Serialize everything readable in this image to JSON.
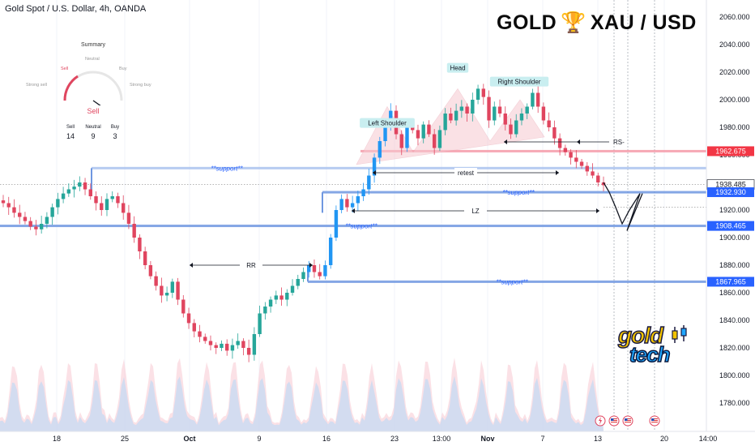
{
  "header": {
    "symbol_line": "Gold Spot / U.S. Dollar, 4h, OANDA",
    "big_title_left": "GOLD",
    "big_title_right": "XAU / USD"
  },
  "summary_widget": {
    "title": "Summary",
    "labels": {
      "strong_sell": "Strong sell",
      "sell": "Sell",
      "neutral": "Neutral",
      "buy": "Buy",
      "strong_buy": "Strong buy"
    },
    "result": "Sell",
    "counts": [
      {
        "label": "Sell",
        "value": "14"
      },
      {
        "label": "Neutral",
        "value": "9"
      },
      {
        "label": "Buy",
        "value": "3"
      }
    ],
    "needle_level": 0.28
  },
  "logo": {
    "word1": "gold",
    "word2": "tech"
  },
  "colors": {
    "up": "#26a69a",
    "up_bright": "#2196f3",
    "down": "#e0455f",
    "support_line": "#6f97e0",
    "resistance_band": "#f49aa8",
    "pattern_fill": "#f7c9d1",
    "price_label_blue": "#2962ff",
    "price_label_red": "#f23645"
  },
  "chart_data": {
    "type": "candlestick",
    "timeframe": "4h",
    "x_tick_labels": [
      "18",
      "25",
      "Oct",
      "9",
      "16",
      "23",
      "13:00",
      "Nov",
      "7",
      "13",
      "20",
      "14:00"
    ],
    "y_axis": {
      "min": 1760,
      "max": 2070,
      "tick_labels": [
        "2060.000",
        "2040.000",
        "2020.000",
        "2000.000",
        "1980.000",
        "1960.000",
        "1940.000",
        "1920.000",
        "1900.000",
        "1880.000",
        "1860.000",
        "1840.000",
        "1820.000",
        "1800.000",
        "1780.000"
      ]
    },
    "price_labels": [
      {
        "value": "1962.675",
        "color": "red"
      },
      {
        "value": "1938.485",
        "color": "dark"
      },
      {
        "value": "1932.930",
        "color": "blue"
      },
      {
        "value": "1908.465",
        "color": "blue"
      },
      {
        "value": "1867.965",
        "color": "blue"
      }
    ],
    "close_path": [
      1925,
      1922,
      1918,
      1915,
      1912,
      1908,
      1906,
      1910,
      1915,
      1922,
      1928,
      1932,
      1935,
      1937,
      1940,
      1935,
      1930,
      1925,
      1920,
      1928,
      1930,
      1925,
      1918,
      1910,
      1900,
      1890,
      1880,
      1872,
      1865,
      1858,
      1860,
      1868,
      1855,
      1845,
      1838,
      1832,
      1828,
      1825,
      1822,
      1820,
      1823,
      1818,
      1822,
      1825,
      1820,
      1815,
      1830,
      1845,
      1850,
      1855,
      1858,
      1855,
      1860,
      1865,
      1870,
      1875,
      1880,
      1875,
      1872,
      1880,
      1900,
      1920,
      1928,
      1922,
      1925,
      1930,
      1935,
      1945,
      1958,
      1970,
      1980,
      1992,
      1975,
      1965,
      1980,
      1978,
      1972,
      1982,
      1975,
      1965,
      1978,
      1990,
      1985,
      1992,
      1995,
      1990,
      2000,
      2008,
      2002,
      1985,
      1995,
      1990,
      1982,
      1975,
      1985,
      1990,
      1995,
      2005,
      1995,
      1985,
      1980,
      1972,
      1965,
      1962,
      1958,
      1955,
      1952,
      1948,
      1945,
      1940,
      1938
    ],
    "projection_path": [
      1940,
      1933,
      1922,
      1910,
      1920,
      1932,
      1905,
      1932
    ],
    "pattern_labels": [
      "Left Shoulder",
      "Head",
      "Right Shoulder"
    ],
    "annotations": [
      {
        "text": "RR",
        "kind": "range"
      },
      {
        "text": "retest",
        "kind": "range"
      },
      {
        "text": "LZ",
        "kind": "range"
      },
      {
        "text": "RS-",
        "kind": "arrow"
      }
    ],
    "levels": [
      {
        "name": "**support**",
        "value": 1950.4,
        "type": "support",
        "label_shown": true
      },
      {
        "name": "**support**",
        "value": 1932.9,
        "type": "support",
        "label_shown": true
      },
      {
        "name": "**support**",
        "value": 1908.5,
        "type": "support",
        "label_shown": true
      },
      {
        "name": "**support**",
        "value": 1868.0,
        "type": "support",
        "label_shown": true
      },
      {
        "name": "",
        "value": 1962.7,
        "type": "resistance",
        "label_shown": false
      }
    ]
  }
}
